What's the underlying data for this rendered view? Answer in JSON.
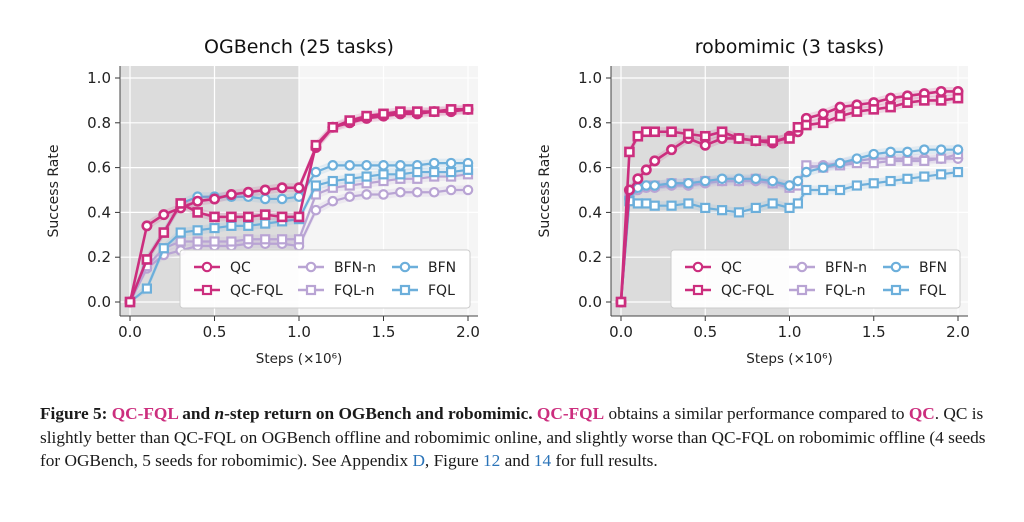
{
  "chart_data": [
    {
      "type": "line",
      "title": "OGBench (25 tasks)",
      "xlabel": "Steps (×10⁶)",
      "ylabel": "Success Rate",
      "xlim": [
        0,
        2.0
      ],
      "ylim": [
        0,
        1.0
      ],
      "xticks": [
        "0.0",
        "0.5",
        "1.0",
        "1.5",
        "2.0"
      ],
      "yticks": [
        "0.0",
        "0.2",
        "0.4",
        "0.6",
        "0.8",
        "1.0"
      ],
      "grid": true,
      "offline_region": [
        0,
        1.0
      ],
      "legend_position": "lower-right",
      "x": [
        0,
        0.1,
        0.2,
        0.3,
        0.4,
        0.5,
        0.6,
        0.7,
        0.8,
        0.9,
        1.0,
        1.1,
        1.2,
        1.3,
        1.4,
        1.5,
        1.6,
        1.7,
        1.8,
        1.9,
        2.0
      ],
      "series": [
        {
          "name": "QC",
          "color": "#cc2e7e",
          "marker": "circle",
          "bold": true,
          "values": [
            0.0,
            0.34,
            0.39,
            0.42,
            0.45,
            0.46,
            0.48,
            0.49,
            0.5,
            0.51,
            0.51,
            0.69,
            0.78,
            0.8,
            0.82,
            0.83,
            0.84,
            0.84,
            0.85,
            0.85,
            0.86
          ]
        },
        {
          "name": "QC-FQL",
          "color": "#cc2e7e",
          "marker": "square",
          "bold": true,
          "values": [
            0.0,
            0.19,
            0.31,
            0.44,
            0.4,
            0.38,
            0.38,
            0.38,
            0.39,
            0.38,
            0.38,
            0.7,
            0.78,
            0.81,
            0.83,
            0.84,
            0.85,
            0.85,
            0.85,
            0.86,
            0.86
          ]
        },
        {
          "name": "BFN-n",
          "color": "#b9a4d4",
          "marker": "circle",
          "bold": false,
          "values": [
            0.0,
            0.15,
            0.21,
            0.23,
            0.25,
            0.25,
            0.25,
            0.26,
            0.26,
            0.26,
            0.25,
            0.41,
            0.45,
            0.47,
            0.48,
            0.48,
            0.49,
            0.49,
            0.49,
            0.5,
            0.5
          ]
        },
        {
          "name": "FQL-n",
          "color": "#b9a4d4",
          "marker": "square",
          "bold": false,
          "values": [
            0.0,
            0.16,
            0.24,
            0.27,
            0.27,
            0.27,
            0.27,
            0.28,
            0.28,
            0.28,
            0.28,
            0.48,
            0.51,
            0.52,
            0.53,
            0.54,
            0.55,
            0.55,
            0.56,
            0.56,
            0.57
          ]
        },
        {
          "name": "BFN",
          "color": "#6cafdb",
          "marker": "circle",
          "bold": false,
          "values": [
            0.0,
            0.19,
            0.31,
            0.44,
            0.47,
            0.47,
            0.47,
            0.47,
            0.46,
            0.46,
            0.47,
            0.58,
            0.61,
            0.61,
            0.61,
            0.61,
            0.61,
            0.61,
            0.62,
            0.62,
            0.62
          ]
        },
        {
          "name": "FQL",
          "color": "#6cafdb",
          "marker": "square",
          "bold": false,
          "values": [
            0.0,
            0.06,
            0.24,
            0.31,
            0.32,
            0.33,
            0.34,
            0.34,
            0.35,
            0.36,
            0.37,
            0.52,
            0.54,
            0.55,
            0.56,
            0.57,
            0.57,
            0.58,
            0.58,
            0.58,
            0.59
          ]
        }
      ]
    },
    {
      "type": "line",
      "title": "robomimic (3 tasks)",
      "xlabel": "Steps (×10⁶)",
      "ylabel": "Success Rate",
      "xlim": [
        0,
        2.0
      ],
      "ylim": [
        0,
        1.0
      ],
      "xticks": [
        "0.0",
        "0.5",
        "1.0",
        "1.5",
        "2.0"
      ],
      "yticks": [
        "0.0",
        "0.2",
        "0.4",
        "0.6",
        "0.8",
        "1.0"
      ],
      "grid": true,
      "offline_region": [
        0,
        1.0
      ],
      "legend_position": "lower-right",
      "x": [
        0,
        0.05,
        0.1,
        0.15,
        0.2,
        0.3,
        0.4,
        0.5,
        0.6,
        0.7,
        0.8,
        0.9,
        1.0,
        1.05,
        1.1,
        1.2,
        1.3,
        1.4,
        1.5,
        1.6,
        1.7,
        1.8,
        1.9,
        2.0
      ],
      "series": [
        {
          "name": "QC",
          "color": "#cc2e7e",
          "marker": "circle",
          "bold": true,
          "values": [
            0.0,
            0.5,
            0.55,
            0.59,
            0.63,
            0.68,
            0.73,
            0.7,
            0.73,
            0.73,
            0.72,
            0.71,
            0.74,
            0.76,
            0.82,
            0.84,
            0.87,
            0.88,
            0.89,
            0.91,
            0.92,
            0.93,
            0.94,
            0.94
          ]
        },
        {
          "name": "QC-FQL",
          "color": "#cc2e7e",
          "marker": "square",
          "bold": true,
          "values": [
            0.0,
            0.67,
            0.74,
            0.76,
            0.76,
            0.76,
            0.75,
            0.74,
            0.76,
            0.73,
            0.72,
            0.72,
            0.73,
            0.78,
            0.79,
            0.8,
            0.83,
            0.85,
            0.86,
            0.87,
            0.89,
            0.9,
            0.9,
            0.91
          ]
        },
        {
          "name": "BFN-n",
          "color": "#b9a4d4",
          "marker": "circle",
          "bold": false,
          "values": [
            0.0,
            0.47,
            0.5,
            0.51,
            0.51,
            0.52,
            0.52,
            0.53,
            0.54,
            0.54,
            0.54,
            0.53,
            0.52,
            0.53,
            0.6,
            0.61,
            0.62,
            0.63,
            0.64,
            0.64,
            0.64,
            0.64,
            0.64,
            0.64
          ]
        },
        {
          "name": "FQL-n",
          "color": "#b9a4d4",
          "marker": "square",
          "bold": false,
          "values": [
            0.0,
            0.48,
            0.52,
            0.52,
            0.52,
            0.53,
            0.53,
            0.54,
            0.54,
            0.54,
            0.55,
            0.53,
            0.51,
            0.52,
            0.61,
            0.6,
            0.61,
            0.62,
            0.62,
            0.63,
            0.63,
            0.63,
            0.64,
            0.66
          ]
        },
        {
          "name": "BFN",
          "color": "#6cafdb",
          "marker": "circle",
          "bold": false,
          "values": [
            0.0,
            0.46,
            0.51,
            0.52,
            0.52,
            0.53,
            0.53,
            0.54,
            0.55,
            0.55,
            0.55,
            0.54,
            0.52,
            0.54,
            0.58,
            0.6,
            0.62,
            0.64,
            0.66,
            0.67,
            0.67,
            0.68,
            0.68,
            0.68
          ]
        },
        {
          "name": "FQL",
          "color": "#6cafdb",
          "marker": "square",
          "bold": false,
          "values": [
            0.0,
            0.45,
            0.44,
            0.44,
            0.43,
            0.43,
            0.44,
            0.42,
            0.41,
            0.4,
            0.42,
            0.44,
            0.42,
            0.44,
            0.5,
            0.5,
            0.5,
            0.52,
            0.53,
            0.54,
            0.55,
            0.56,
            0.57,
            0.58
          ]
        }
      ]
    }
  ],
  "caption": {
    "label": "Figure 5:",
    "title_hl1": "QC-FQL",
    "title_mid": " and ",
    "title_n": "n",
    "title_rest": "-step return on OGBench and robomimic.",
    "s1_hl": "QC-FQL",
    "s1": " obtains a similar performance compared to ",
    "s1_hl2": "QC",
    "s2": ". QC is slightly better than QC-FQL on OGBench offline and robomimic online, and slightly worse than QC-FQL on robomimic offline (4 seeds for OGBench, 5 seeds for robomimic). See Appendix ",
    "ref_appendix": "D",
    "s3": ", Figure ",
    "ref_fig1": "12",
    "s4": " and ",
    "ref_fig2": "14",
    "s5": " for full results."
  }
}
